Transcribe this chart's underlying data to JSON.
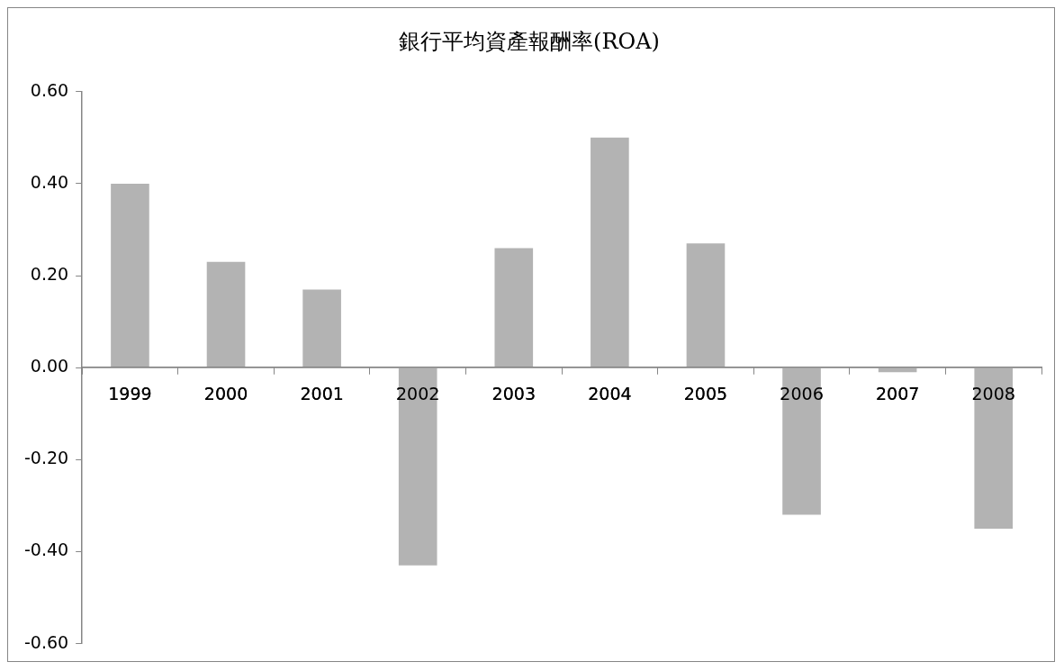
{
  "chart_data": {
    "type": "bar",
    "title": "銀行平均資產報酬率(ROA)",
    "categories": [
      "1999",
      "2000",
      "2001",
      "2002",
      "2003",
      "2004",
      "2005",
      "2006",
      "2007",
      "2008"
    ],
    "values": [
      0.4,
      0.23,
      0.17,
      -0.43,
      0.26,
      0.5,
      0.27,
      -0.32,
      -0.01,
      -0.35
    ],
    "color": "#b3b3b3",
    "ylim": [
      -0.6,
      0.6
    ],
    "yticks": [
      {
        "value": -0.6,
        "label": "-0.60"
      },
      {
        "value": -0.4,
        "label": "-0.40"
      },
      {
        "value": -0.2,
        "label": "-0.20"
      },
      {
        "value": 0,
        "label": "0.00"
      },
      {
        "value": 0.2,
        "label": "0.20"
      },
      {
        "value": 0.4,
        "label": "0.40"
      },
      {
        "value": 0.6,
        "label": "0.60"
      }
    ],
    "grid": false
  }
}
